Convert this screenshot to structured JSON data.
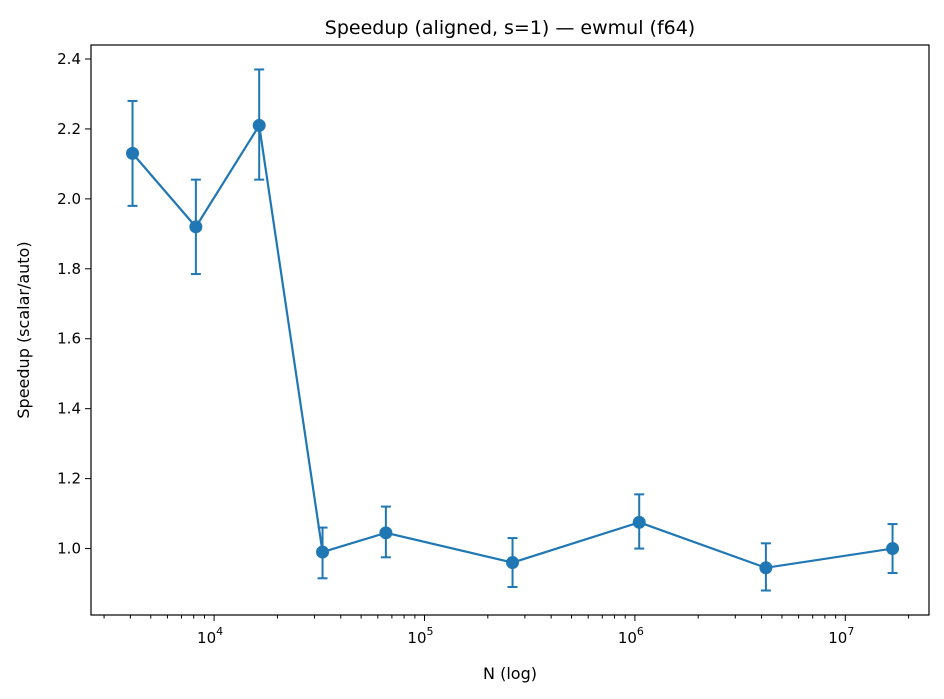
{
  "chart_data": {
    "type": "line",
    "title": "Speedup (aligned, s=1) — ewmul (f64)",
    "xlabel": "N (log)",
    "ylabel": "Speedup (scalar/auto)",
    "xscale": "log",
    "xlim": [
      2600,
      25000000
    ],
    "ylim": [
      0.81,
      2.44
    ],
    "grid": false,
    "color": "#1f77b4",
    "x_major_ticks": [
      {
        "base": "10",
        "exp": "4",
        "value": 10000
      },
      {
        "base": "10",
        "exp": "5",
        "value": 100000
      },
      {
        "base": "10",
        "exp": "6",
        "value": 1000000
      },
      {
        "base": "10",
        "exp": "7",
        "value": 10000000
      }
    ],
    "y_ticks": [
      {
        "value": 1.0,
        "label": "1.0"
      },
      {
        "value": 1.2,
        "label": "1.2"
      },
      {
        "value": 1.4,
        "label": "1.4"
      },
      {
        "value": 1.6,
        "label": "1.6"
      },
      {
        "value": 1.8,
        "label": "1.8"
      },
      {
        "value": 2.0,
        "label": "2.0"
      },
      {
        "value": 2.2,
        "label": "2.2"
      },
      {
        "value": 2.4,
        "label": "2.4"
      }
    ],
    "series": [
      {
        "x": [
          4096,
          8192,
          16384,
          32768,
          65536,
          262144,
          1048576,
          4194304,
          16777216
        ],
        "y": [
          2.13,
          1.92,
          2.21,
          0.99,
          1.045,
          0.96,
          1.075,
          0.945,
          1.0
        ],
        "yerr_low": [
          1.98,
          1.785,
          2.055,
          0.915,
          0.975,
          0.89,
          1.0,
          0.88,
          0.93
        ],
        "yerr_high": [
          2.28,
          2.055,
          2.37,
          1.06,
          1.12,
          1.03,
          1.155,
          1.015,
          1.07
        ]
      }
    ]
  }
}
